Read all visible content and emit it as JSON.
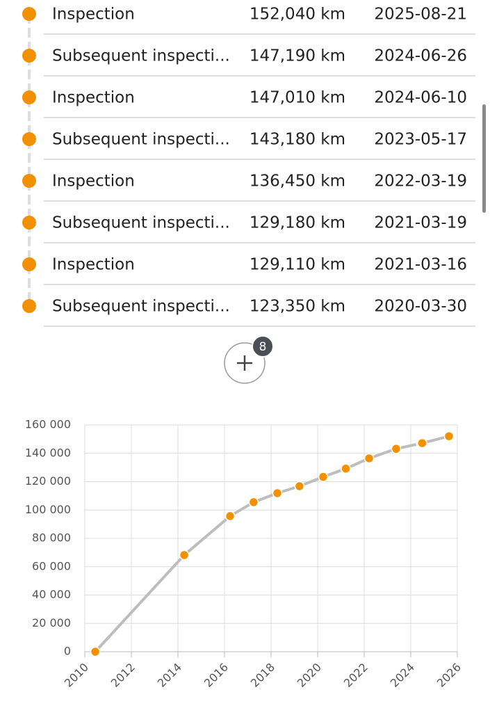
{
  "list": {
    "items": [
      {
        "title": "Inspection",
        "distance": "152,040 km",
        "date": "2025-08-21"
      },
      {
        "title": "Subsequent inspecti...",
        "distance": "147,190 km",
        "date": "2024-06-26"
      },
      {
        "title": "Inspection",
        "distance": "147,010 km",
        "date": "2024-06-10"
      },
      {
        "title": "Subsequent inspecti...",
        "distance": "143,180 km",
        "date": "2023-05-17"
      },
      {
        "title": "Inspection",
        "distance": "136,450 km",
        "date": "2022-03-19"
      },
      {
        "title": "Subsequent inspecti...",
        "distance": "129,180 km",
        "date": "2021-03-19"
      },
      {
        "title": "Inspection",
        "distance": "129,110 km",
        "date": "2021-03-16"
      },
      {
        "title": "Subsequent inspecti...",
        "distance": "123,350 km",
        "date": "2020-03-30"
      }
    ]
  },
  "more_button": {
    "count": "8"
  },
  "chart_data": {
    "type": "line",
    "x": [
      2010.45,
      2014.27,
      2016.24,
      2017.25,
      2018.27,
      2019.22,
      2020.24,
      2021.2,
      2021.21,
      2022.21,
      2023.37,
      2024.44,
      2024.49,
      2025.64
    ],
    "series": [
      {
        "color": "#f29100",
        "line_color": "#bdbdbd",
        "values": [
          0,
          68200,
          95700,
          105500,
          111900,
          116800,
          123350,
          129110,
          129180,
          136450,
          143180,
          147010,
          147190,
          152040
        ]
      }
    ],
    "xlim": [
      2010,
      2026
    ],
    "xticks": [
      2010,
      2012,
      2014,
      2016,
      2018,
      2020,
      2022,
      2024,
      2026
    ],
    "ylim": [
      0,
      160000
    ],
    "yticks": [
      0,
      {
        "value": 20000,
        "label": "20 000"
      },
      {
        "value": 40000,
        "label": "40 000"
      },
      {
        "value": 60000,
        "label": "60 000"
      },
      {
        "value": 80000,
        "label": "80 000"
      },
      {
        "value": 100000,
        "label": "100 000"
      },
      {
        "value": 120000,
        "label": "120 000"
      },
      {
        "value": 140000,
        "label": "140 000"
      },
      {
        "value": 160000,
        "label": "160 000"
      }
    ],
    "grid": true
  }
}
